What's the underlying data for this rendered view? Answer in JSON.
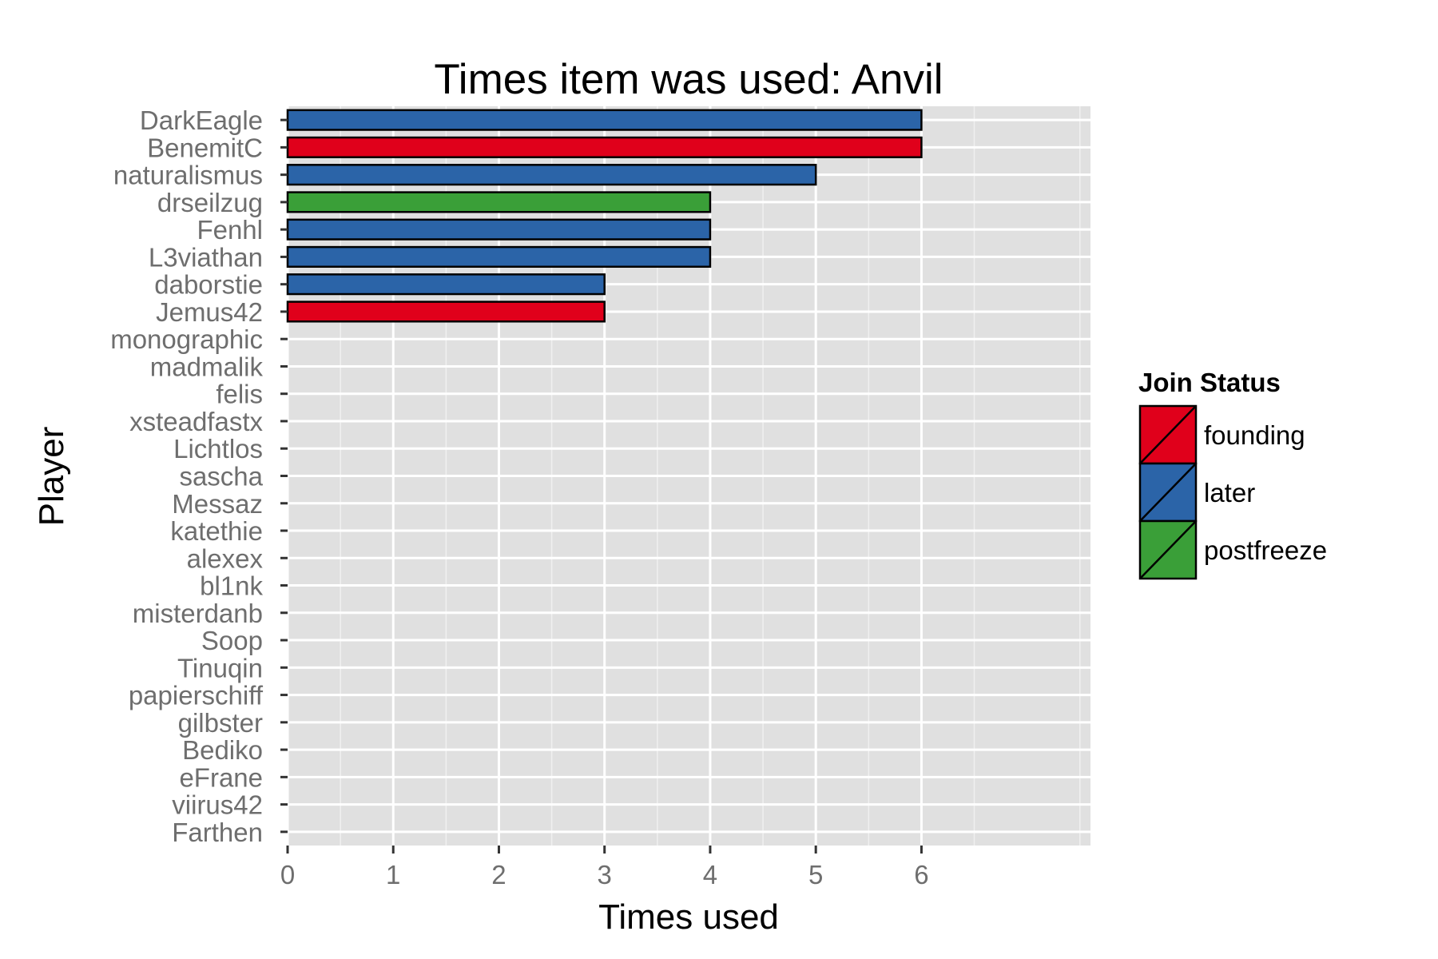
{
  "chart_data": {
    "type": "bar",
    "orientation": "horizontal",
    "title": "Times item was used: Anvil",
    "xlabel": "Times used",
    "ylabel": "Player",
    "xlim": [
      0,
      7.6
    ],
    "xticks": [
      0,
      1,
      2,
      3,
      4,
      5,
      6
    ],
    "grid": true,
    "legend": {
      "title": "Join Status",
      "position": "right",
      "items": [
        {
          "label": "founding",
          "color": "#e0001b"
        },
        {
          "label": "later",
          "color": "#2b64a8"
        },
        {
          "label": "postfreeze",
          "color": "#3a9f38"
        }
      ]
    },
    "categories": [
      "DarkEagle",
      "BenemitC",
      "naturalismus",
      "drseilzug",
      "Fenhl",
      "L3viathan",
      "daborstie",
      "Jemus42",
      "monographic",
      "madmalik",
      "felis",
      "xsteadfastx",
      "Lichtlos",
      "sascha",
      "Messaz",
      "katethie",
      "alexex",
      "bl1nk",
      "misterdanb",
      "Soop",
      "Tinuqin",
      "papierschiff",
      "gilbster",
      "Bediko",
      "eFrane",
      "viirus42",
      "Farthen"
    ],
    "values": [
      6,
      6,
      5,
      4,
      4,
      4,
      3,
      3,
      0,
      0,
      0,
      0,
      0,
      0,
      0,
      0,
      0,
      0,
      0,
      0,
      0,
      0,
      0,
      0,
      0,
      0,
      0
    ],
    "groups": [
      "later",
      "founding",
      "later",
      "postfreeze",
      "later",
      "later",
      "later",
      "founding",
      "",
      "",
      "",
      "",
      "",
      "",
      "",
      "",
      "",
      "",
      "",
      "",
      "",
      "",
      "",
      "",
      "",
      "",
      ""
    ]
  }
}
